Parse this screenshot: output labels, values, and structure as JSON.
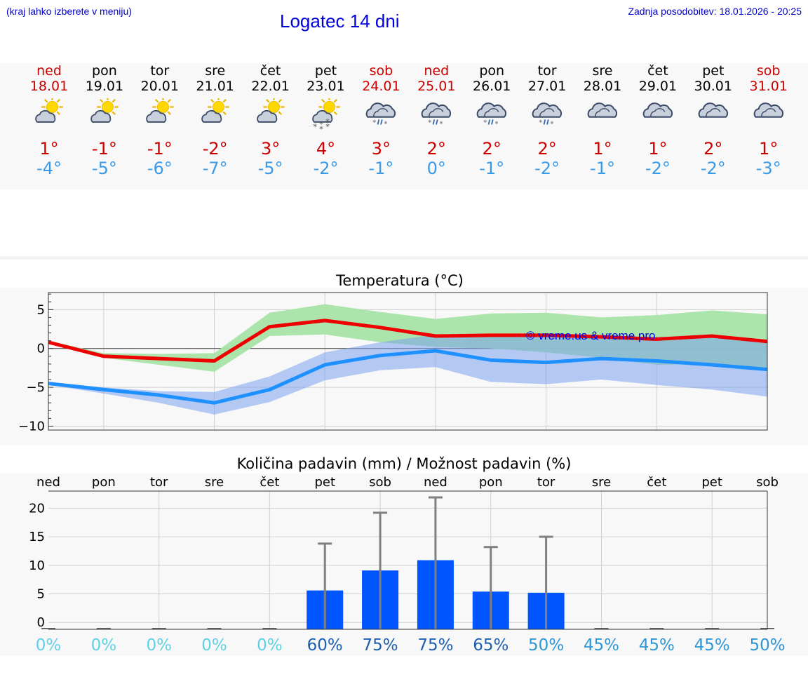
{
  "header": {
    "note": "(kraj lahko izberete v meniju)",
    "title": "Logatec 14 dni",
    "updated": "Zadnja posodobitev: 18.01.2026 - 20:25"
  },
  "colors": {
    "max_line": "#ee0000",
    "min_line": "#1e90ff",
    "max_band": "#a8e4a8",
    "min_band": "#a8c0f0",
    "bar": "#0055ff",
    "errorbar": "#808080",
    "weekend_text": "#cc0000",
    "min_text": "#3a9ae8"
  },
  "days": [
    {
      "name": "ned",
      "date": "18.01",
      "weekend": true,
      "icon": "sun-cloud-icon",
      "tmax": "1°",
      "tmin": "-4°"
    },
    {
      "name": "pon",
      "date": "19.01",
      "weekend": false,
      "icon": "sun-cloud-icon",
      "tmax": "-1°",
      "tmin": "-5°"
    },
    {
      "name": "tor",
      "date": "20.01",
      "weekend": false,
      "icon": "sun-cloud-icon",
      "tmax": "-1°",
      "tmin": "-6°"
    },
    {
      "name": "sre",
      "date": "21.01",
      "weekend": false,
      "icon": "sun-cloud-icon",
      "tmax": "-2°",
      "tmin": "-7°"
    },
    {
      "name": "čet",
      "date": "22.01",
      "weekend": false,
      "icon": "sun-cloud-icon",
      "tmax": "3°",
      "tmin": "-5°"
    },
    {
      "name": "pet",
      "date": "23.01",
      "weekend": false,
      "icon": "sun-cloud-snow-icon",
      "tmax": "4°",
      "tmin": "-2°"
    },
    {
      "name": "sob",
      "date": "24.01",
      "weekend": true,
      "icon": "cloud-sleet-icon",
      "tmax": "3°",
      "tmin": "-1°"
    },
    {
      "name": "ned",
      "date": "25.01",
      "weekend": true,
      "icon": "cloud-sleet-icon",
      "tmax": "2°",
      "tmin": "0°"
    },
    {
      "name": "pon",
      "date": "26.01",
      "weekend": false,
      "icon": "cloud-sleet-icon",
      "tmax": "2°",
      "tmin": "-1°"
    },
    {
      "name": "tor",
      "date": "27.01",
      "weekend": false,
      "icon": "cloud-sleet-icon",
      "tmax": "2°",
      "tmin": "-2°"
    },
    {
      "name": "sre",
      "date": "28.01",
      "weekend": false,
      "icon": "cloud-icon",
      "tmax": "1°",
      "tmin": "-1°"
    },
    {
      "name": "čet",
      "date": "29.01",
      "weekend": false,
      "icon": "cloud-icon",
      "tmax": "1°",
      "tmin": "-2°"
    },
    {
      "name": "pet",
      "date": "30.01",
      "weekend": false,
      "icon": "cloud-icon",
      "tmax": "2°",
      "tmin": "-2°"
    },
    {
      "name": "sob",
      "date": "31.01",
      "weekend": true,
      "icon": "cloud-icon",
      "tmax": "1°",
      "tmin": "-3°"
    }
  ],
  "chart_data": [
    {
      "type": "line",
      "title": "Temperatura (°C)",
      "watermark": "© vreme.us & vreme.pro",
      "x": [
        0,
        1,
        2,
        3,
        4,
        5,
        6,
        7,
        8,
        9,
        10,
        11,
        12,
        13
      ],
      "ylim": [
        -10.5,
        7.2
      ],
      "yticks": [
        5,
        0,
        -5,
        -10
      ],
      "ytick_labels": [
        "5",
        "0",
        "−5",
        "−10"
      ],
      "grid": true,
      "series": [
        {
          "name": "max",
          "values": [
            0.8,
            -1.0,
            -1.3,
            -1.6,
            2.8,
            3.6,
            2.7,
            1.6,
            1.7,
            1.7,
            1.5,
            1.2,
            1.6,
            0.9
          ],
          "band_high": [
            1.0,
            -0.6,
            -0.7,
            -0.6,
            4.6,
            5.7,
            4.7,
            3.8,
            4.5,
            4.6,
            4.0,
            4.3,
            4.9,
            4.4
          ],
          "band_low": [
            0.6,
            -1.2,
            -2.1,
            -3.0,
            1.6,
            1.8,
            0.8,
            0.2,
            0.0,
            -0.5,
            -1.2,
            -2.1,
            -2.0,
            -2.6
          ]
        },
        {
          "name": "min",
          "values": [
            -4.5,
            -5.3,
            -6.0,
            -7.0,
            -5.3,
            -2.1,
            -0.9,
            -0.3,
            -1.5,
            -1.8,
            -1.3,
            -1.6,
            -2.1,
            -2.7
          ],
          "band_high": [
            -4.3,
            -5.0,
            -5.5,
            -5.6,
            -3.6,
            -0.5,
            0.8,
            1.8,
            1.6,
            1.7,
            1.6,
            1.5,
            1.6,
            0.9
          ],
          "band_low": [
            -4.7,
            -5.8,
            -7.0,
            -8.5,
            -6.9,
            -4.1,
            -2.8,
            -2.4,
            -4.3,
            -4.6,
            -4.0,
            -4.7,
            -5.3,
            -6.2
          ]
        }
      ]
    },
    {
      "type": "bar",
      "title": "Količina padavin (mm) / Možnost padavin (%)",
      "categories": [
        "ned",
        "pon",
        "tor",
        "sre",
        "čet",
        "pet",
        "sob",
        "ned",
        "pon",
        "tor",
        "sre",
        "čet",
        "pet",
        "sob"
      ],
      "values": [
        0,
        0,
        0,
        0,
        0,
        5.6,
        9.1,
        10.9,
        5.4,
        5.2,
        0,
        0,
        0,
        0
      ],
      "error_max": [
        0,
        0,
        0,
        0,
        0,
        13.8,
        19.2,
        21.9,
        13.2,
        15.0,
        0,
        0,
        0,
        0
      ],
      "yticks": [
        20,
        15,
        10,
        5,
        0
      ],
      "ylim": [
        -1.2,
        23
      ],
      "probability_labels": [
        "0%",
        "0%",
        "0%",
        "0%",
        "0%",
        "60%",
        "75%",
        "75%",
        "65%",
        "50%",
        "45%",
        "45%",
        "45%",
        "50%"
      ],
      "probability": [
        0,
        0,
        0,
        0,
        0,
        60,
        75,
        75,
        65,
        50,
        45,
        45,
        45,
        50
      ]
    }
  ]
}
